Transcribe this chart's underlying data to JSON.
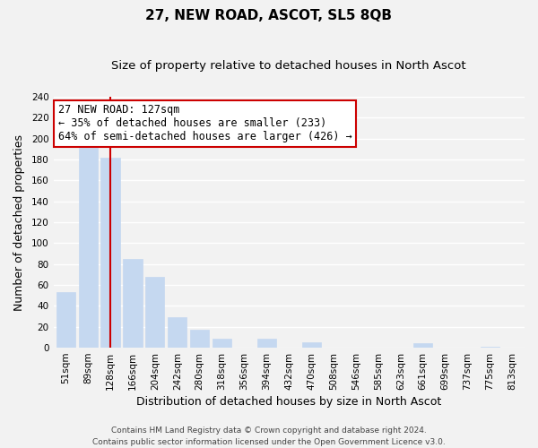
{
  "title": "27, NEW ROAD, ASCOT, SL5 8QB",
  "subtitle": "Size of property relative to detached houses in North Ascot",
  "xlabel": "Distribution of detached houses by size in North Ascot",
  "ylabel": "Number of detached properties",
  "footer_line1": "Contains HM Land Registry data © Crown copyright and database right 2024.",
  "footer_line2": "Contains public sector information licensed under the Open Government Licence v3.0.",
  "bin_labels": [
    "51sqm",
    "89sqm",
    "128sqm",
    "166sqm",
    "204sqm",
    "242sqm",
    "280sqm",
    "318sqm",
    "356sqm",
    "394sqm",
    "432sqm",
    "470sqm",
    "508sqm",
    "546sqm",
    "585sqm",
    "623sqm",
    "661sqm",
    "699sqm",
    "737sqm",
    "775sqm",
    "813sqm"
  ],
  "bar_values": [
    53,
    191,
    182,
    85,
    68,
    29,
    17,
    9,
    0,
    9,
    0,
    5,
    0,
    0,
    0,
    0,
    4,
    0,
    0,
    1,
    0
  ],
  "bar_color": "#c5d8f0",
  "highlight_bar_index": 2,
  "highlight_line_color": "#cc0000",
  "ylim": [
    0,
    240
  ],
  "yticks": [
    0,
    20,
    40,
    60,
    80,
    100,
    120,
    140,
    160,
    180,
    200,
    220,
    240
  ],
  "annotation_title": "27 NEW ROAD: 127sqm",
  "annotation_line1": "← 35% of detached houses are smaller (233)",
  "annotation_line2": "64% of semi-detached houses are larger (426) →",
  "annotation_box_facecolor": "#ffffff",
  "annotation_box_edgecolor": "#cc0000",
  "background_color": "#f2f2f2",
  "grid_color": "#ffffff",
  "title_fontsize": 11,
  "subtitle_fontsize": 9.5,
  "xlabel_fontsize": 9,
  "ylabel_fontsize": 9,
  "tick_fontsize": 7.5,
  "annotation_fontsize": 8.5,
  "footer_fontsize": 6.5
}
